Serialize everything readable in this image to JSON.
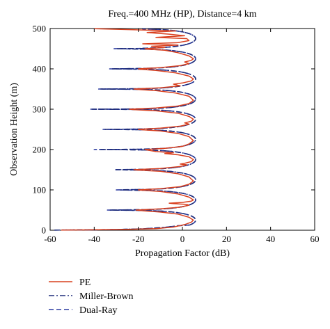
{
  "chart_data": {
    "type": "line",
    "title": "Freq.=400 MHz (HP), Distance=4 km",
    "xlabel": "Propagation Factor (dB)",
    "ylabel": "Observation Height (m)",
    "xlim": [
      -60,
      60
    ],
    "ylim": [
      0,
      500
    ],
    "xticks": [
      "-60",
      "-40",
      "-20",
      "0",
      "20",
      "40",
      "60"
    ],
    "yticks": [
      "0",
      "100",
      "200",
      "300",
      "400",
      "500"
    ],
    "grid": false,
    "legend_position": "bottom-left, below plot",
    "null_spacing_m": 50,
    "series": [
      {
        "name": "PE",
        "color": "#d9401f",
        "style": "solid",
        "points": [
          [
            -55,
            0.5
          ],
          [
            -40,
            1
          ],
          [
            -25,
            2
          ],
          [
            -12,
            4
          ],
          [
            -4,
            8
          ],
          [
            1,
            14
          ],
          [
            4,
            20
          ],
          [
            5,
            25
          ],
          [
            3,
            32
          ],
          [
            -2,
            40
          ],
          [
            -10,
            45
          ],
          [
            -17,
            48
          ],
          [
            -21,
            50
          ],
          [
            -10,
            53
          ],
          [
            -1,
            57
          ],
          [
            3,
            62
          ],
          [
            2,
            64
          ],
          [
            -4,
            66
          ],
          [
            -6,
            67
          ],
          [
            0,
            69
          ],
          [
            4,
            72
          ],
          [
            5,
            75
          ],
          [
            3,
            82
          ],
          [
            -2,
            90
          ],
          [
            -10,
            96
          ],
          [
            -18,
            99
          ],
          [
            -20,
            100
          ],
          [
            -10,
            103
          ],
          [
            -1,
            108
          ],
          [
            3,
            114
          ],
          [
            5,
            122
          ],
          [
            3,
            132
          ],
          [
            -2,
            140
          ],
          [
            -10,
            146
          ],
          [
            -20,
            149
          ],
          [
            -22,
            150
          ],
          [
            -10,
            153
          ],
          [
            -1,
            158
          ],
          [
            2,
            162
          ],
          [
            -1,
            164
          ],
          [
            1,
            166
          ],
          [
            4,
            170
          ],
          [
            5,
            175
          ],
          [
            3,
            182
          ],
          [
            -2,
            187
          ],
          [
            -8,
            190
          ],
          [
            -4,
            192
          ],
          [
            -12,
            195
          ],
          [
            -16,
            199
          ],
          [
            -17,
            200
          ],
          [
            -8,
            203
          ],
          [
            0,
            208
          ],
          [
            3,
            214
          ],
          [
            5,
            222
          ],
          [
            3,
            232
          ],
          [
            -2,
            240
          ],
          [
            -10,
            246
          ],
          [
            -18,
            249
          ],
          [
            -20,
            250
          ],
          [
            -10,
            253
          ],
          [
            -1,
            258
          ],
          [
            3,
            263
          ],
          [
            1,
            266
          ],
          [
            4,
            270
          ],
          [
            5,
            275
          ],
          [
            3,
            282
          ],
          [
            -2,
            290
          ],
          [
            -12,
            296
          ],
          [
            -22,
            299
          ],
          [
            -24,
            300
          ],
          [
            -12,
            303
          ],
          [
            -2,
            308
          ],
          [
            3,
            314
          ],
          [
            5,
            322
          ],
          [
            3,
            332
          ],
          [
            -3,
            340
          ],
          [
            -12,
            346
          ],
          [
            -20,
            349
          ],
          [
            -22,
            350
          ],
          [
            -10,
            353
          ],
          [
            -1,
            358
          ],
          [
            -4,
            362
          ],
          [
            0,
            365
          ],
          [
            4,
            370
          ],
          [
            5,
            375
          ],
          [
            3,
            382
          ],
          [
            -3,
            390
          ],
          [
            -12,
            396
          ],
          [
            -19,
            399
          ],
          [
            -20,
            400
          ],
          [
            -10,
            403
          ],
          [
            -1,
            408
          ],
          [
            3,
            413
          ],
          [
            1,
            417
          ],
          [
            4,
            421
          ],
          [
            5,
            425
          ],
          [
            3,
            432
          ],
          [
            -2,
            440
          ],
          [
            -8,
            446
          ],
          [
            -16,
            449
          ],
          [
            -17,
            450
          ],
          [
            -8,
            453
          ],
          [
            -14,
            456
          ],
          [
            -2,
            459
          ],
          [
            -18,
            462
          ],
          [
            -2,
            465
          ],
          [
            3,
            470
          ],
          [
            2,
            475
          ],
          [
            -12,
            478
          ],
          [
            1,
            482
          ],
          [
            -6,
            486
          ],
          [
            -16,
            490
          ],
          [
            -3,
            494
          ],
          [
            -22,
            497
          ],
          [
            -40,
            499.5
          ]
        ]
      },
      {
        "name": "Miller-Brown",
        "color": "#1f2d7a",
        "style": "dash-dot",
        "nulls_m": [
          50,
          100,
          150,
          200,
          250,
          300,
          350,
          400,
          450,
          500
        ],
        "null_depth_db": [
          -33,
          -28,
          -30,
          -37,
          -35,
          -41,
          -37,
          -32,
          -30,
          -18
        ],
        "peak_db": 6
      },
      {
        "name": "Dual-Ray",
        "color": "#2a3aa0",
        "style": "dashed",
        "nulls_m": [
          50,
          100,
          150,
          200,
          250,
          300,
          350,
          400,
          450,
          500
        ],
        "null_depth_db": [
          -34,
          -30,
          -31,
          -40,
          -36,
          -42,
          -38,
          -33,
          -31,
          -18
        ],
        "peak_db": 6
      }
    ]
  }
}
